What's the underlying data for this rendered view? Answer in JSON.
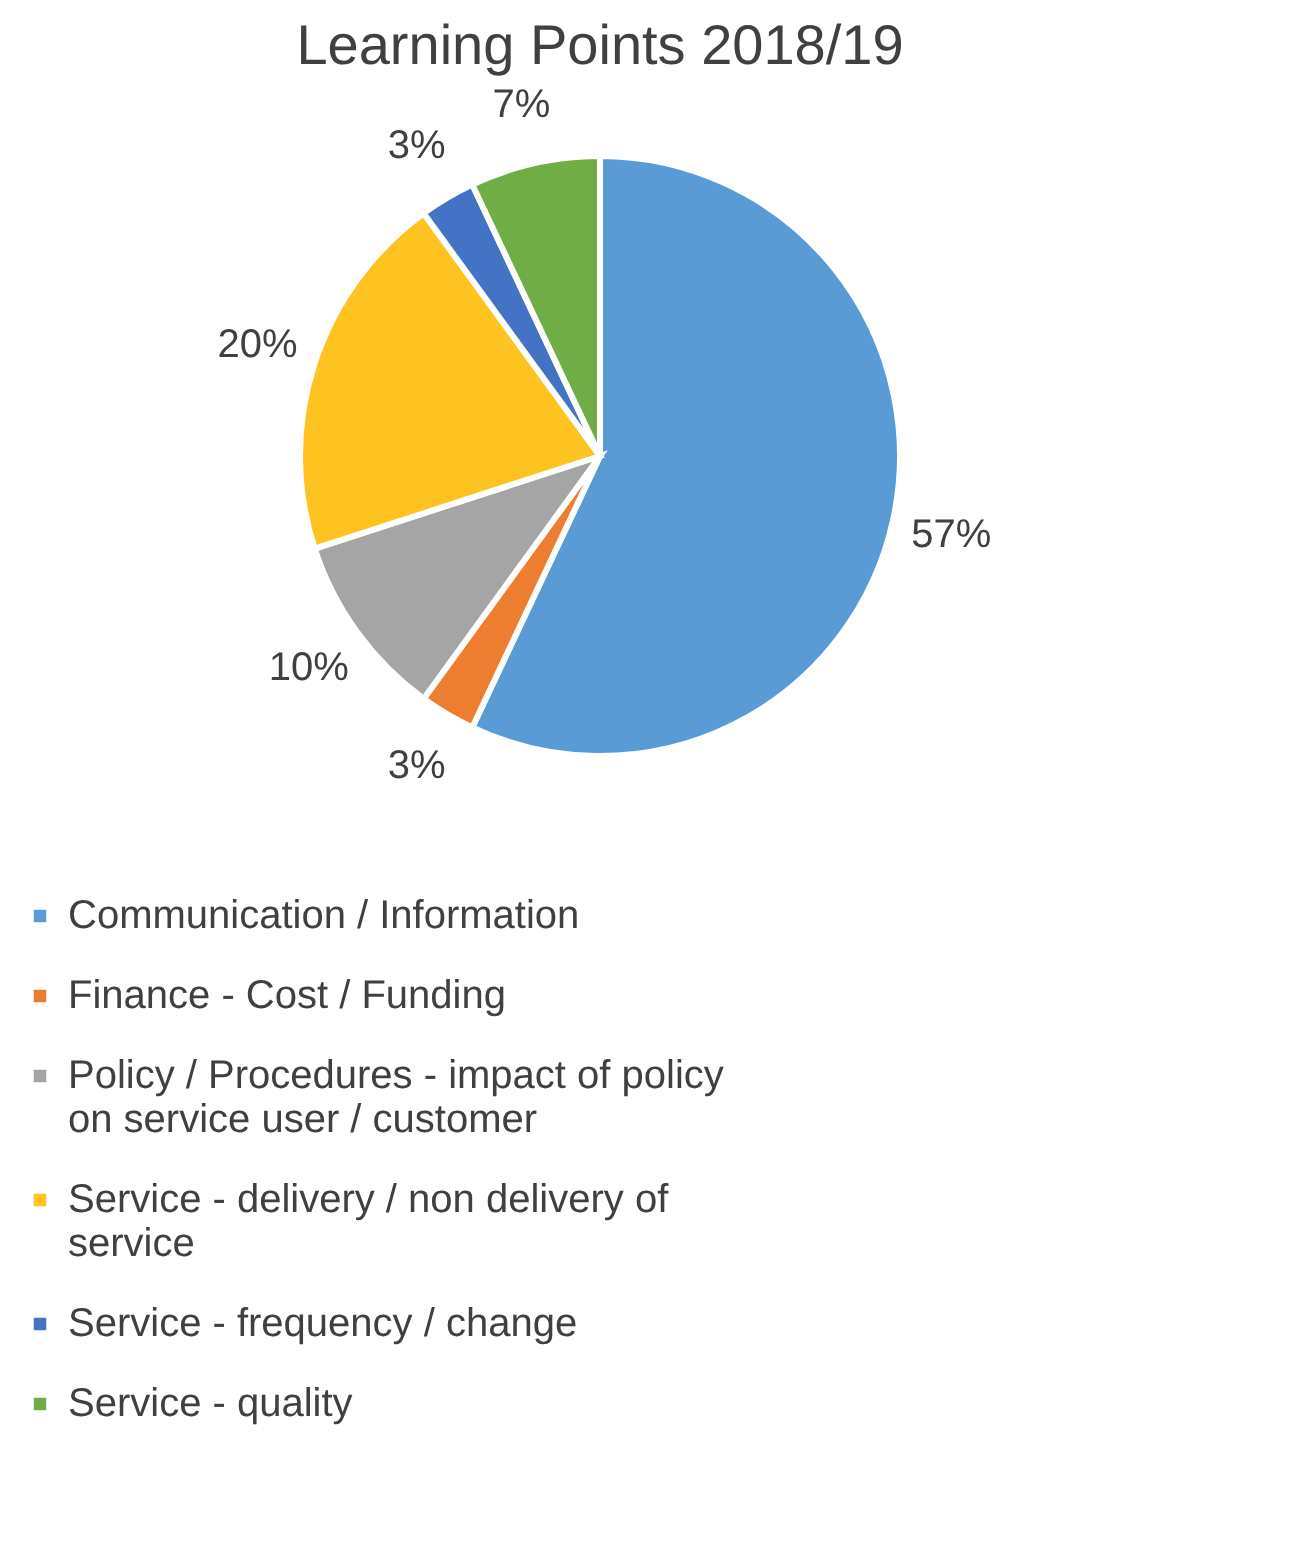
{
  "chart_data": {
    "type": "pie",
    "title": "Learning Points 2018/19",
    "categories": [
      "Communication / Information",
      "Finance - Cost / Funding",
      "Policy / Procedures - impact of policy on service user / customer",
      "Service - delivery / non delivery of service",
      "Service - frequency / change",
      "Service - quality"
    ],
    "values": [
      57,
      3,
      10,
      20,
      3,
      7
    ],
    "value_labels": [
      "57%",
      "3%",
      "10%",
      "20%",
      "3%",
      "7%"
    ],
    "colors": [
      "#5b9bd5",
      "#ed7d31",
      "#a5a5a5",
      "#ffc321",
      "#4472c4",
      "#70ad47"
    ],
    "legend": "bottom"
  }
}
